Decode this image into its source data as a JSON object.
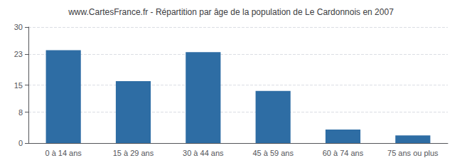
{
  "chart_data": {
    "type": "bar",
    "title": "www.CartesFrance.fr - Répartition par âge de la population de Le Cardonnois en 2007",
    "categories": [
      "0 à 14 ans",
      "15 à 29 ans",
      "30 à 44 ans",
      "45 à 59 ans",
      "60 à 74 ans",
      "75 ans ou plus"
    ],
    "values": [
      24.0,
      16.0,
      23.5,
      13.5,
      3.5,
      2.0
    ],
    "color": "#2e6da4",
    "ylim": [
      0,
      30
    ],
    "yticks": [
      0,
      8,
      15,
      23,
      30
    ],
    "grid": true
  }
}
